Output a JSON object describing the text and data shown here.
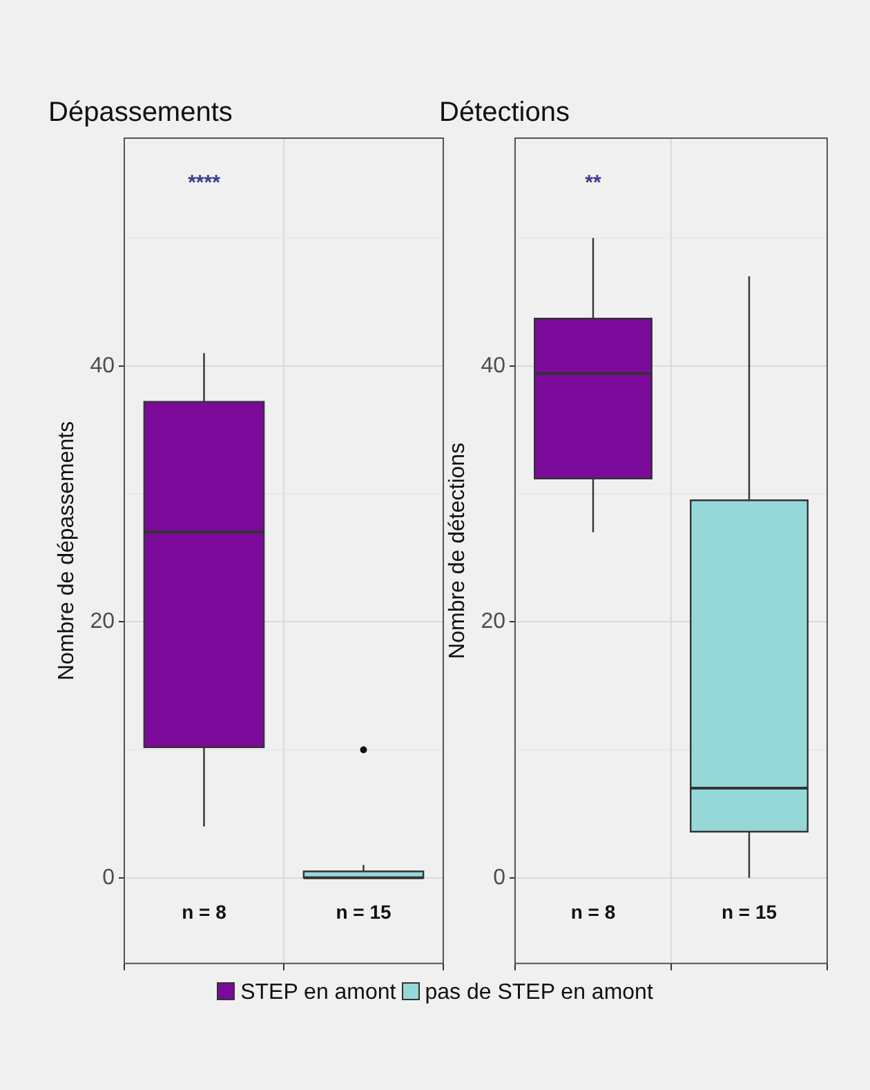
{
  "chart_data": [
    {
      "type": "box",
      "title": "Dépassements",
      "ylabel": "Nombre de dépassements",
      "categories": [
        null,
        null
      ],
      "ylim": [
        -6.7,
        57.8
      ],
      "yticks": [
        0,
        20,
        40
      ],
      "grid": true,
      "tick_labels": "y",
      "legend": "bottom",
      "series": [
        {
          "name": "STEP en amont",
          "color": "#7b0a9a",
          "boxes": [
            {
              "low": 4,
              "q1": 10.2,
              "median": 27,
              "q3": 37.2,
              "high": 41
            },
            null
          ]
        },
        {
          "name": "pas de STEP en amont",
          "color": "#96d8d8",
          "boxes": [
            null,
            {
              "low": 0,
              "q1": 0,
              "median": 0,
              "q3": 0.5,
              "high": 1,
              "outliers": [
                10
              ]
            }
          ]
        }
      ],
      "annotations": [
        "****",
        "n = 8",
        "n = 15"
      ]
    },
    {
      "type": "box",
      "title": "Détections",
      "ylabel": "Nombre de détections",
      "categories": [
        null,
        null
      ],
      "ylim": [
        -6.7,
        57.8
      ],
      "yticks": [
        0,
        20,
        40
      ],
      "grid": true,
      "tick_labels": "y",
      "series": [
        {
          "color": "#7b0a9a",
          "boxes": [
            {
              "low": 27,
              "q1": 31.2,
              "median": 39.4,
              "q3": 43.7,
              "high": 50
            },
            null
          ]
        },
        {
          "color": "#96d8d8",
          "boxes": [
            null,
            {
              "low": 0,
              "q1": 3.6,
              "median": 7,
              "q3": 29.5,
              "high": 47
            }
          ]
        }
      ],
      "annotations": [
        "**",
        "n = 8",
        "n = 15"
      ]
    }
  ]
}
